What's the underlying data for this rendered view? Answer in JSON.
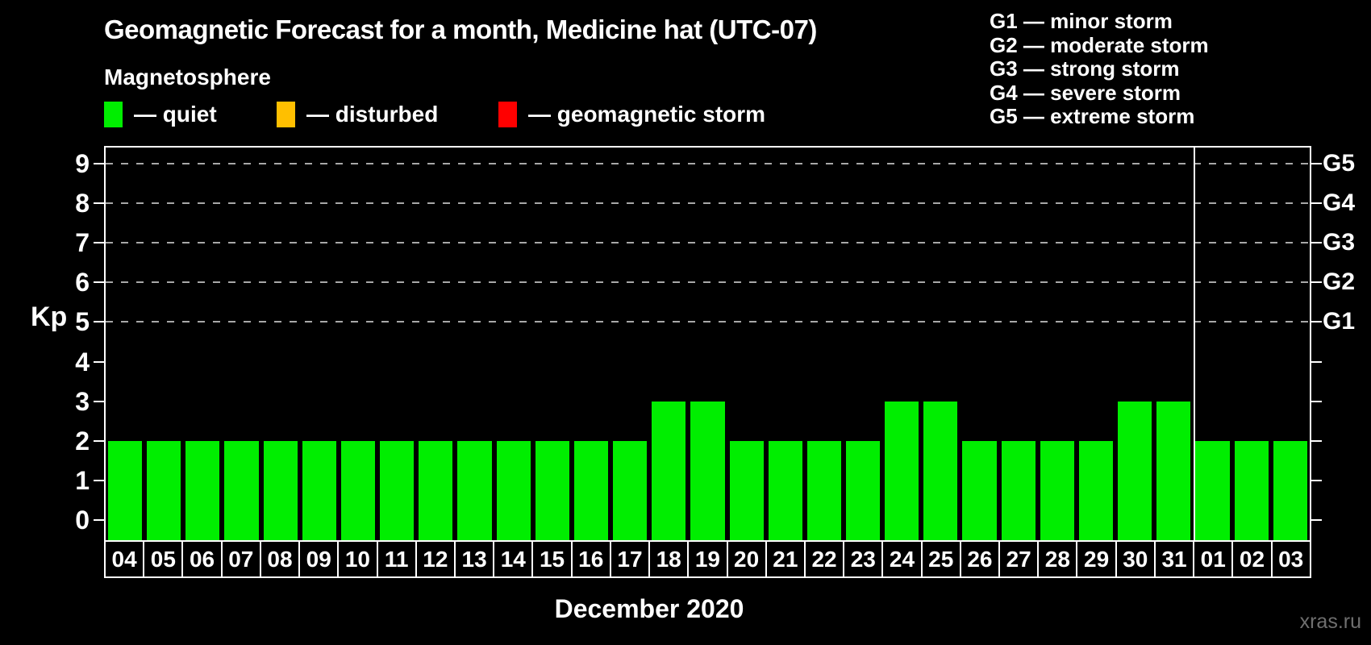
{
  "header": {
    "title": "Geomagnetic Forecast for a month, Medicine hat (UTC-07)",
    "subtitle": "Magnetosphere"
  },
  "legend": {
    "items": [
      {
        "name": "quiet",
        "color": "#00ee00",
        "label": "— quiet"
      },
      {
        "name": "disturbed",
        "color": "#ffbf00",
        "label": "— disturbed"
      },
      {
        "name": "storm",
        "color": "#ff0000",
        "label": "— geomagnetic storm"
      }
    ]
  },
  "g_scale_legend": {
    "items": [
      "G1 — minor storm",
      "G2 — moderate storm",
      "G3 — strong storm",
      "G4 — severe storm",
      "G5 — extreme storm"
    ]
  },
  "chart_data": {
    "type": "bar",
    "title": "Geomagnetic Forecast for a month, Medicine hat (UTC-07)",
    "xlabel": "December 2020",
    "ylabel": "Kp",
    "ylim": [
      -0.5,
      9.4
    ],
    "yticks": [
      0,
      1,
      2,
      3,
      4,
      5,
      6,
      7,
      8,
      9
    ],
    "gridline_levels": [
      5,
      6,
      7,
      8,
      9
    ],
    "right_axis_labels": [
      {
        "kp": 5,
        "label": "G1"
      },
      {
        "kp": 6,
        "label": "G2"
      },
      {
        "kp": 7,
        "label": "G3"
      },
      {
        "kp": 8,
        "label": "G4"
      },
      {
        "kp": 9,
        "label": "G5"
      }
    ],
    "categories": [
      "04",
      "05",
      "06",
      "07",
      "08",
      "09",
      "10",
      "11",
      "12",
      "13",
      "14",
      "15",
      "16",
      "17",
      "18",
      "19",
      "20",
      "21",
      "22",
      "23",
      "24",
      "25",
      "26",
      "27",
      "28",
      "29",
      "30",
      "31",
      "01",
      "02",
      "03"
    ],
    "values": [
      2,
      2,
      2,
      2,
      2,
      2,
      2,
      2,
      2,
      2,
      2,
      2,
      2,
      2,
      3,
      3,
      2,
      2,
      2,
      2,
      3,
      3,
      2,
      2,
      2,
      2,
      3,
      3,
      2,
      2,
      2
    ],
    "bar_color": "#00ee00",
    "month_boundary_index": 28,
    "grid": "horizontal dashed lines at G-storm levels only",
    "legend_position": "top-left"
  },
  "footer": {
    "watermark": "xras.ru"
  }
}
